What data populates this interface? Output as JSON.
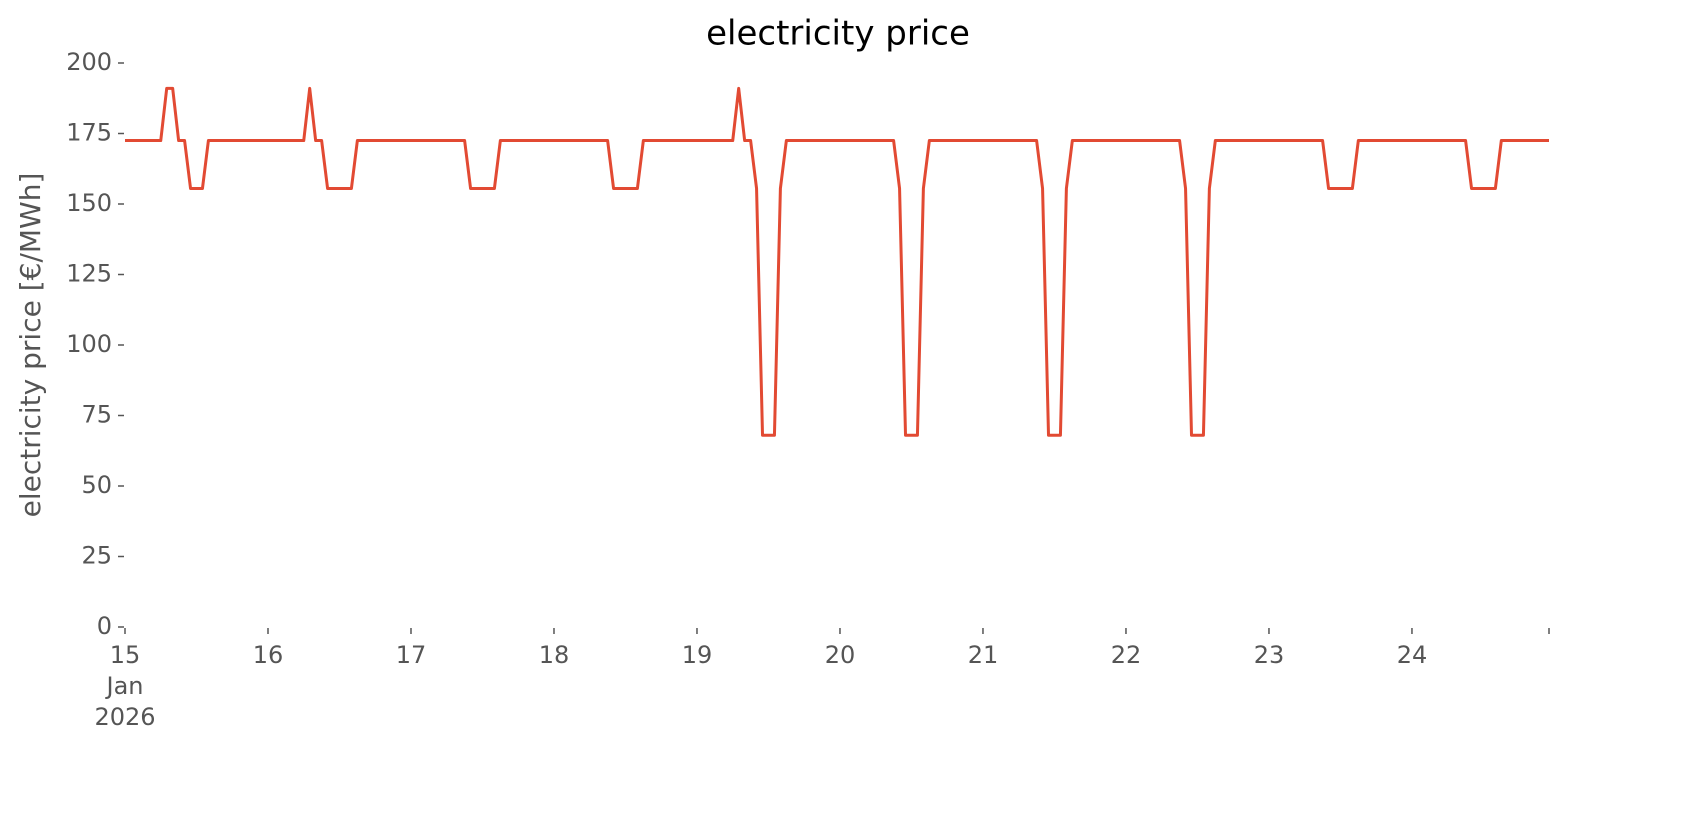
{
  "chart_data": {
    "type": "line",
    "title": "electricity price",
    "ylabel": "electricity price [€/MWh]",
    "color": "#e24a33",
    "grid": false,
    "ylim": [
      0,
      200
    ],
    "yticks": [
      0,
      25,
      50,
      75,
      100,
      125,
      150,
      175,
      200
    ],
    "xlim": [
      "2026-01-15 00:00",
      "2026-01-24 23:00"
    ],
    "xticks": [
      {
        "value": "2026-01-15 00:00",
        "label": "15\nJan\n2026"
      },
      {
        "value": "2026-01-16 00:00",
        "label": "16"
      },
      {
        "value": "2026-01-17 00:00",
        "label": "17"
      },
      {
        "value": "2026-01-18 00:00",
        "label": "18"
      },
      {
        "value": "2026-01-19 00:00",
        "label": "19"
      },
      {
        "value": "2026-01-20 00:00",
        "label": "20"
      },
      {
        "value": "2026-01-21 00:00",
        "label": "21"
      },
      {
        "value": "2026-01-22 00:00",
        "label": "22"
      },
      {
        "value": "2026-01-23 00:00",
        "label": "23"
      },
      {
        "value": "2026-01-24 00:00",
        "label": "24"
      }
    ],
    "x": [
      "2026-01-15 00:00",
      "2026-01-15 01:00",
      "2026-01-15 02:00",
      "2026-01-15 03:00",
      "2026-01-15 04:00",
      "2026-01-15 05:00",
      "2026-01-15 06:00",
      "2026-01-15 07:00",
      "2026-01-15 08:00",
      "2026-01-15 09:00",
      "2026-01-15 10:00",
      "2026-01-15 11:00",
      "2026-01-15 12:00",
      "2026-01-15 13:00",
      "2026-01-15 14:00",
      "2026-01-15 15:00",
      "2026-01-15 16:00",
      "2026-01-15 17:00",
      "2026-01-15 18:00",
      "2026-01-15 19:00",
      "2026-01-15 20:00",
      "2026-01-15 21:00",
      "2026-01-15 22:00",
      "2026-01-15 23:00",
      "2026-01-16 00:00",
      "2026-01-16 01:00",
      "2026-01-16 02:00",
      "2026-01-16 03:00",
      "2026-01-16 04:00",
      "2026-01-16 05:00",
      "2026-01-16 06:00",
      "2026-01-16 07:00",
      "2026-01-16 08:00",
      "2026-01-16 09:00",
      "2026-01-16 10:00",
      "2026-01-16 11:00",
      "2026-01-16 12:00",
      "2026-01-16 13:00",
      "2026-01-16 14:00",
      "2026-01-16 15:00",
      "2026-01-16 16:00",
      "2026-01-16 17:00",
      "2026-01-16 18:00",
      "2026-01-16 19:00",
      "2026-01-16 20:00",
      "2026-01-16 21:00",
      "2026-01-16 22:00",
      "2026-01-16 23:00",
      "2026-01-17 00:00",
      "2026-01-17 01:00",
      "2026-01-17 02:00",
      "2026-01-17 03:00",
      "2026-01-17 04:00",
      "2026-01-17 05:00",
      "2026-01-17 06:00",
      "2026-01-17 07:00",
      "2026-01-17 08:00",
      "2026-01-17 09:00",
      "2026-01-17 10:00",
      "2026-01-17 11:00",
      "2026-01-17 12:00",
      "2026-01-17 13:00",
      "2026-01-17 14:00",
      "2026-01-17 15:00",
      "2026-01-17 16:00",
      "2026-01-17 17:00",
      "2026-01-17 18:00",
      "2026-01-17 19:00",
      "2026-01-17 20:00",
      "2026-01-17 21:00",
      "2026-01-17 22:00",
      "2026-01-17 23:00",
      "2026-01-18 00:00",
      "2026-01-18 01:00",
      "2026-01-18 02:00",
      "2026-01-18 03:00",
      "2026-01-18 04:00",
      "2026-01-18 05:00",
      "2026-01-18 06:00",
      "2026-01-18 07:00",
      "2026-01-18 08:00",
      "2026-01-18 09:00",
      "2026-01-18 10:00",
      "2026-01-18 11:00",
      "2026-01-18 12:00",
      "2026-01-18 13:00",
      "2026-01-18 14:00",
      "2026-01-18 15:00",
      "2026-01-18 16:00",
      "2026-01-18 17:00",
      "2026-01-18 18:00",
      "2026-01-18 19:00",
      "2026-01-18 20:00",
      "2026-01-18 21:00",
      "2026-01-18 22:00",
      "2026-01-18 23:00",
      "2026-01-19 00:00",
      "2026-01-19 01:00",
      "2026-01-19 02:00",
      "2026-01-19 03:00",
      "2026-01-19 04:00",
      "2026-01-19 05:00",
      "2026-01-19 06:00",
      "2026-01-19 07:00",
      "2026-01-19 08:00",
      "2026-01-19 09:00",
      "2026-01-19 10:00",
      "2026-01-19 11:00",
      "2026-01-19 12:00",
      "2026-01-19 13:00",
      "2026-01-19 14:00",
      "2026-01-19 15:00",
      "2026-01-19 16:00",
      "2026-01-19 17:00",
      "2026-01-19 18:00",
      "2026-01-19 19:00",
      "2026-01-19 20:00",
      "2026-01-19 21:00",
      "2026-01-19 22:00",
      "2026-01-19 23:00",
      "2026-01-20 00:00",
      "2026-01-20 01:00",
      "2026-01-20 02:00",
      "2026-01-20 03:00",
      "2026-01-20 04:00",
      "2026-01-20 05:00",
      "2026-01-20 06:00",
      "2026-01-20 07:00",
      "2026-01-20 08:00",
      "2026-01-20 09:00",
      "2026-01-20 10:00",
      "2026-01-20 11:00",
      "2026-01-20 12:00",
      "2026-01-20 13:00",
      "2026-01-20 14:00",
      "2026-01-20 15:00",
      "2026-01-20 16:00",
      "2026-01-20 17:00",
      "2026-01-20 18:00",
      "2026-01-20 19:00",
      "2026-01-20 20:00",
      "2026-01-20 21:00",
      "2026-01-20 22:00",
      "2026-01-20 23:00",
      "2026-01-21 00:00",
      "2026-01-21 01:00",
      "2026-01-21 02:00",
      "2026-01-21 03:00",
      "2026-01-21 04:00",
      "2026-01-21 05:00",
      "2026-01-21 06:00",
      "2026-01-21 07:00",
      "2026-01-21 08:00",
      "2026-01-21 09:00",
      "2026-01-21 10:00",
      "2026-01-21 11:00",
      "2026-01-21 12:00",
      "2026-01-21 13:00",
      "2026-01-21 14:00",
      "2026-01-21 15:00",
      "2026-01-21 16:00",
      "2026-01-21 17:00",
      "2026-01-21 18:00",
      "2026-01-21 19:00",
      "2026-01-21 20:00",
      "2026-01-21 21:00",
      "2026-01-21 22:00",
      "2026-01-21 23:00",
      "2026-01-22 00:00",
      "2026-01-22 01:00",
      "2026-01-22 02:00",
      "2026-01-22 03:00",
      "2026-01-22 04:00",
      "2026-01-22 05:00",
      "2026-01-22 06:00",
      "2026-01-22 07:00",
      "2026-01-22 08:00",
      "2026-01-22 09:00",
      "2026-01-22 10:00",
      "2026-01-22 11:00",
      "2026-01-22 12:00",
      "2026-01-22 13:00",
      "2026-01-22 14:00",
      "2026-01-22 15:00",
      "2026-01-22 16:00",
      "2026-01-22 17:00",
      "2026-01-22 18:00",
      "2026-01-22 19:00",
      "2026-01-22 20:00",
      "2026-01-22 21:00",
      "2026-01-22 22:00",
      "2026-01-22 23:00",
      "2026-01-23 00:00",
      "2026-01-23 01:00",
      "2026-01-23 02:00",
      "2026-01-23 03:00",
      "2026-01-23 04:00",
      "2026-01-23 05:00",
      "2026-01-23 06:00",
      "2026-01-23 07:00",
      "2026-01-23 08:00",
      "2026-01-23 09:00",
      "2026-01-23 10:00",
      "2026-01-23 11:00",
      "2026-01-23 12:00",
      "2026-01-23 13:00",
      "2026-01-23 14:00",
      "2026-01-23 15:00",
      "2026-01-23 16:00",
      "2026-01-23 17:00",
      "2026-01-23 18:00",
      "2026-01-23 19:00",
      "2026-01-23 20:00",
      "2026-01-23 21:00",
      "2026-01-23 22:00",
      "2026-01-23 23:00",
      "2026-01-24 00:00",
      "2026-01-24 01:00",
      "2026-01-24 02:00",
      "2026-01-24 03:00",
      "2026-01-24 04:00",
      "2026-01-24 05:00",
      "2026-01-24 06:00",
      "2026-01-24 07:00",
      "2026-01-24 08:00",
      "2026-01-24 09:00",
      "2026-01-24 10:00",
      "2026-01-24 11:00",
      "2026-01-24 12:00",
      "2026-01-24 13:00",
      "2026-01-24 14:00",
      "2026-01-24 15:00",
      "2026-01-24 16:00",
      "2026-01-24 17:00",
      "2026-01-24 18:00",
      "2026-01-24 19:00",
      "2026-01-24 20:00",
      "2026-01-24 21:00",
      "2026-01-24 22:00",
      "2026-01-24 23:00"
    ],
    "values": [
      172.5,
      172.5,
      172.5,
      172.5,
      172.5,
      172.5,
      172.5,
      191,
      191,
      172.5,
      172.5,
      155.5,
      155.5,
      155.5,
      172.5,
      172.5,
      172.5,
      172.5,
      172.5,
      172.5,
      172.5,
      172.5,
      172.5,
      172.5,
      172.5,
      172.5,
      172.5,
      172.5,
      172.5,
      172.5,
      172.5,
      191,
      172.5,
      172.5,
      155.5,
      155.5,
      155.5,
      155.5,
      155.5,
      172.5,
      172.5,
      172.5,
      172.5,
      172.5,
      172.5,
      172.5,
      172.5,
      172.5,
      172.5,
      172.5,
      172.5,
      172.5,
      172.5,
      172.5,
      172.5,
      172.5,
      172.5,
      172.5,
      155.5,
      155.5,
      155.5,
      155.5,
      155.5,
      172.5,
      172.5,
      172.5,
      172.5,
      172.5,
      172.5,
      172.5,
      172.5,
      172.5,
      172.5,
      172.5,
      172.5,
      172.5,
      172.5,
      172.5,
      172.5,
      172.5,
      172.5,
      172.5,
      155.5,
      155.5,
      155.5,
      155.5,
      155.5,
      172.5,
      172.5,
      172.5,
      172.5,
      172.5,
      172.5,
      172.5,
      172.5,
      172.5,
      172.5,
      172.5,
      172.5,
      172.5,
      172.5,
      172.5,
      172.5,
      191,
      172.5,
      172.5,
      155.5,
      68,
      68,
      68,
      155.5,
      172.5,
      172.5,
      172.5,
      172.5,
      172.5,
      172.5,
      172.5,
      172.5,
      172.5,
      172.5,
      172.5,
      172.5,
      172.5,
      172.5,
      172.5,
      172.5,
      172.5,
      172.5,
      172.5,
      155.5,
      68,
      68,
      68,
      155.5,
      172.5,
      172.5,
      172.5,
      172.5,
      172.5,
      172.5,
      172.5,
      172.5,
      172.5,
      172.5,
      172.5,
      172.5,
      172.5,
      172.5,
      172.5,
      172.5,
      172.5,
      172.5,
      172.5,
      155.5,
      68,
      68,
      68,
      155.5,
      172.5,
      172.5,
      172.5,
      172.5,
      172.5,
      172.5,
      172.5,
      172.5,
      172.5,
      172.5,
      172.5,
      172.5,
      172.5,
      172.5,
      172.5,
      172.5,
      172.5,
      172.5,
      172.5,
      155.5,
      68,
      68,
      68,
      155.5,
      172.5,
      172.5,
      172.5,
      172.5,
      172.5,
      172.5,
      172.5,
      172.5,
      172.5,
      172.5,
      172.5,
      172.5,
      172.5,
      172.5,
      172.5,
      172.5,
      172.5,
      172.5,
      172.5,
      155.5,
      155.5,
      155.5,
      155.5,
      155.5,
      172.5,
      172.5,
      172.5,
      172.5,
      172.5,
      172.5,
      172.5,
      172.5,
      172.5,
      172.5,
      172.5,
      172.5,
      172.5,
      172.5,
      172.5,
      172.5,
      172.5,
      172.5,
      172.5,
      155.5,
      155.5,
      155.5,
      155.5,
      155.5,
      172.5,
      172.5,
      172.5,
      172.5,
      172.5,
      172.5,
      172.5,
      172.5,
      172.5
    ]
  }
}
